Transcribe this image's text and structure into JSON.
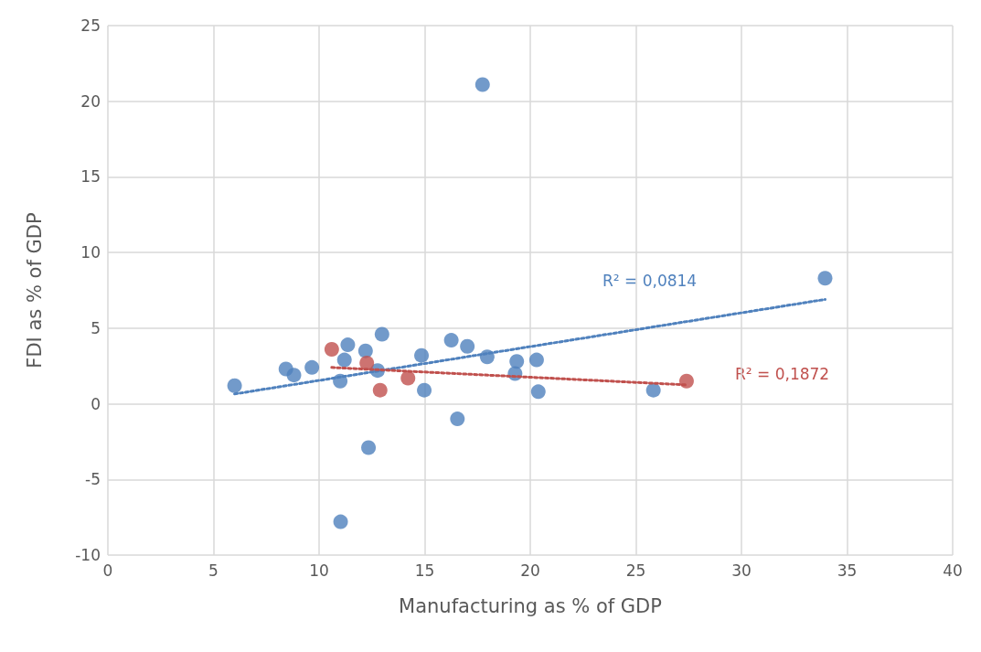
{
  "chart_data": {
    "type": "scatter",
    "xlabel": "Manufacturing as % of GDP",
    "ylabel": "FDI as % of GDP",
    "xlim": [
      0,
      40
    ],
    "xticks": [
      0,
      5,
      10,
      15,
      20,
      25,
      30,
      35,
      40
    ],
    "ylim": [
      -10,
      25
    ],
    "yticks": [
      -10,
      -5,
      0,
      5,
      10,
      15,
      20,
      25
    ],
    "grid": true,
    "marker": "circle",
    "series": [
      {
        "color": "#4f81bd",
        "x": [
          6.0,
          8.43,
          8.81,
          9.66,
          11.0,
          11.2,
          11.36,
          12.2,
          12.77,
          12.98,
          14.85,
          14.98,
          16.26,
          17.02,
          17.96,
          19.36,
          19.28,
          20.3,
          20.38,
          16.55,
          12.34,
          11.02,
          17.74,
          33.96,
          25.83
        ],
        "values": [
          1.2,
          2.3,
          1.9,
          2.4,
          1.5,
          2.9,
          3.9,
          3.5,
          2.2,
          4.6,
          3.2,
          0.9,
          4.2,
          3.8,
          3.1,
          2.8,
          2.0,
          2.9,
          0.8,
          -1.0,
          -2.9,
          -7.8,
          21.1,
          8.3,
          0.9
        ]
      },
      {
        "color": "#c0504d",
        "x": [
          10.6,
          12.26,
          12.89,
          14.21,
          27.4
        ],
        "values": [
          3.6,
          2.7,
          0.9,
          1.7,
          1.5
        ]
      },
      {
        "type": "line",
        "color": "#4f81bd",
        "line_style": "dotted",
        "marker": "none",
        "x": [
          6.0,
          33.96
        ],
        "values": [
          0.65,
          6.9
        ]
      },
      {
        "type": "line",
        "color": "#c0504d",
        "line_style": "dotted",
        "marker": "none",
        "x": [
          10.6,
          27.4
        ],
        "values": [
          2.4,
          1.25
        ]
      }
    ],
    "annotations": [
      "R² = 0,0814",
      "R² = 0,1872"
    ]
  }
}
